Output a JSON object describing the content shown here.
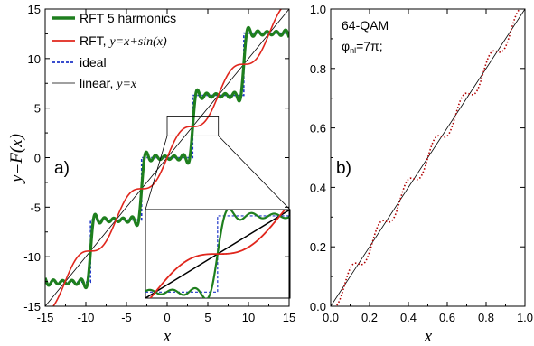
{
  "chart_data": [
    {
      "type": "line",
      "panel_label": "a)",
      "xlabel": "x",
      "ylabel": "y=F(x)",
      "xlim": [
        -15,
        15
      ],
      "ylim": [
        -15,
        15
      ],
      "xticks": [
        "-15",
        "-10",
        "-5",
        "0",
        "5",
        "10",
        "15"
      ],
      "yticks": [
        "-15",
        "-10",
        "-5",
        "0",
        "5",
        "10",
        "15"
      ],
      "legend_placement": "top-left",
      "series": [
        {
          "name": "RFT 5 harmonics",
          "color": "#1e7f1e",
          "style": "thick solid",
          "formula": "partial Fourier sum of the ideal staircase"
        },
        {
          "name": "RFT, ",
          "name_formula": "y=x+sin(x)",
          "color": "#e0261c",
          "style": "solid"
        },
        {
          "name": "ideal",
          "color": "#1f36c8",
          "style": "dashed"
        },
        {
          "name": "linear, ",
          "name_formula": "y=x",
          "color": "#000000",
          "style": "thin solid"
        }
      ],
      "staircase_levels": [
        -12.566,
        -6.283,
        0,
        6.283,
        12.566
      ],
      "inset": {
        "xlim": [
          -0.5,
          6.8
        ],
        "ylim": [
          -0.5,
          6.8
        ],
        "zoom_box": {
          "x": [
            0,
            6.3
          ],
          "y": [
            2.2,
            4.2
          ]
        }
      }
    },
    {
      "type": "line",
      "panel_label": "b)",
      "xlabel": "x",
      "xlim": [
        0,
        1
      ],
      "ylim": [
        0,
        1
      ],
      "xticks": [
        "0.0",
        "0.2",
        "0.4",
        "0.6",
        "0.8",
        "1.0"
      ],
      "yticks": [
        "0.0",
        "0.2",
        "0.4",
        "0.6",
        "0.8",
        "1.0"
      ],
      "annotation_line1": "64-QAM",
      "annotation_phi": "φ",
      "annotation_sub": "nl",
      "annotation_rest": "=7π;",
      "series": [
        {
          "name": "linear",
          "color": "#000000",
          "style": "thin solid"
        },
        {
          "name": "RFT",
          "color": "#b00000",
          "style": "dotted",
          "steps": 7
        }
      ]
    }
  ]
}
